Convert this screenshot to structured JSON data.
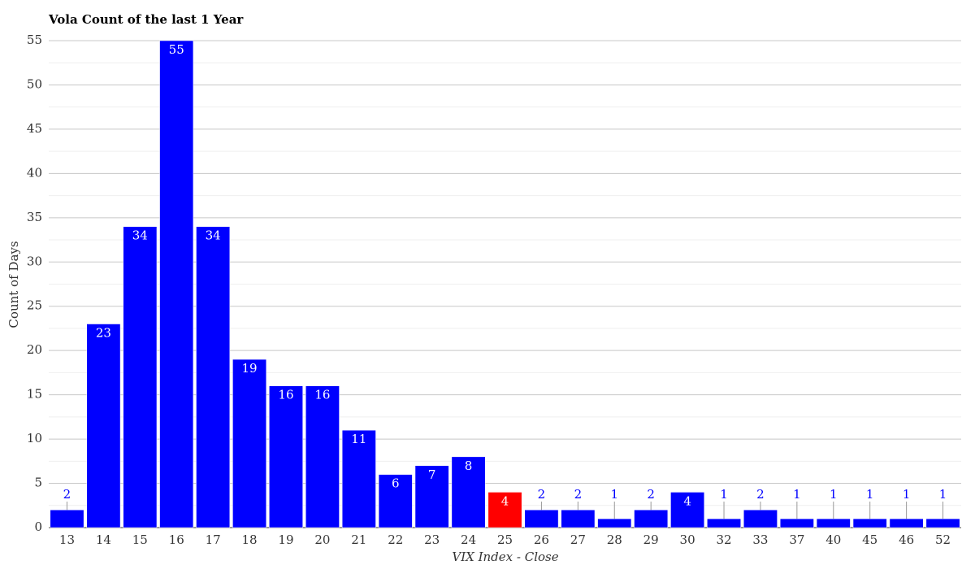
{
  "chart_data": {
    "type": "bar",
    "title": "Vola Count of the last 1 Year",
    "x_label": "VIX Index - Close",
    "y_label": "Count of Days",
    "categories": [
      "13",
      "14",
      "15",
      "16",
      "17",
      "18",
      "19",
      "20",
      "21",
      "22",
      "23",
      "24",
      "25",
      "26",
      "27",
      "28",
      "29",
      "30",
      "32",
      "33",
      "37",
      "40",
      "45",
      "46",
      "52"
    ],
    "values": [
      2,
      23,
      34,
      55,
      34,
      19,
      16,
      16,
      11,
      6,
      7,
      8,
      4,
      2,
      2,
      1,
      2,
      4,
      1,
      2,
      1,
      1,
      1,
      1,
      1
    ],
    "colors": [
      "#0000ff",
      "#0000ff",
      "#0000ff",
      "#0000ff",
      "#0000ff",
      "#0000ff",
      "#0000ff",
      "#0000ff",
      "#0000ff",
      "#0000ff",
      "#0000ff",
      "#0000ff",
      "#ff0000",
      "#0000ff",
      "#0000ff",
      "#0000ff",
      "#0000ff",
      "#0000ff",
      "#0000ff",
      "#0000ff",
      "#0000ff",
      "#0000ff",
      "#0000ff",
      "#0000ff",
      "#0000ff"
    ],
    "ylim": [
      0,
      55
    ],
    "yticks": [
      0,
      5,
      10,
      15,
      20,
      25,
      30,
      35,
      40,
      45,
      50,
      55
    ],
    "grid": true
  }
}
